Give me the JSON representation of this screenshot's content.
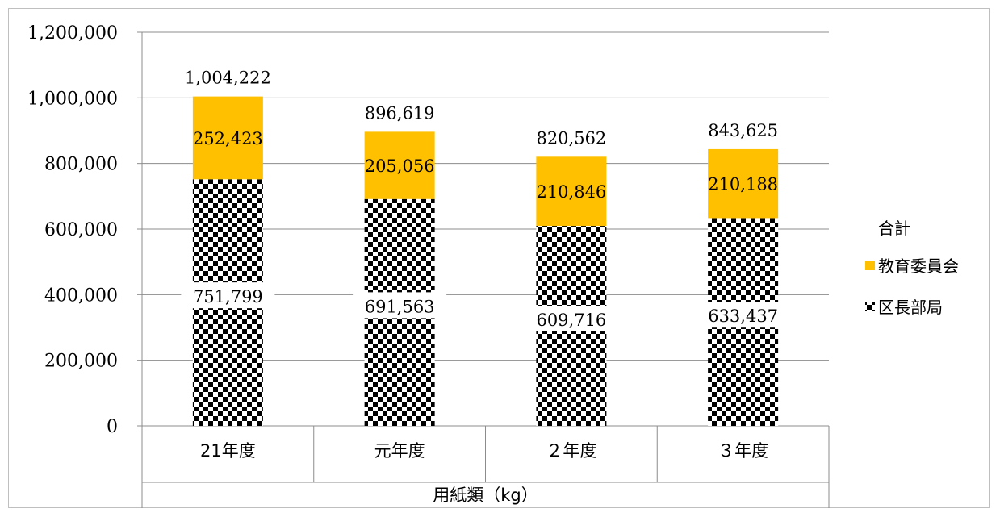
{
  "chart_data": {
    "type": "bar",
    "stacked": true,
    "categories": [
      "21年度",
      "元年度",
      "２年度",
      "３年度"
    ],
    "x_group_label": "用紙類（kg）",
    "ylim": [
      0,
      1200000
    ],
    "yticks": [
      0,
      200000,
      400000,
      600000,
      800000,
      1000000,
      1200000
    ],
    "ytick_labels": [
      "0",
      "200,000",
      "400,000",
      "600,000",
      "800,000",
      "1,000,000",
      "1,200,000"
    ],
    "grid": true,
    "legend_title": "合計",
    "legend_position": "right",
    "series": [
      {
        "name": "区長部局",
        "values": [
          751799,
          691563,
          609716,
          633437
        ],
        "value_labels": [
          "751,799",
          "691,563",
          "609,716",
          "633,437"
        ],
        "pattern": "checkerboard",
        "color": "#000000"
      },
      {
        "name": "教育委員会",
        "values": [
          252423,
          205056,
          210846,
          210188
        ],
        "value_labels": [
          "252,423",
          "205,056",
          "210,846",
          "210,188"
        ],
        "color": "#FFC000"
      }
    ],
    "totals": [
      1004222,
      896619,
      820562,
      843625
    ],
    "total_labels": [
      "1,004,222",
      "896,619",
      "820,562",
      "843,625"
    ]
  }
}
